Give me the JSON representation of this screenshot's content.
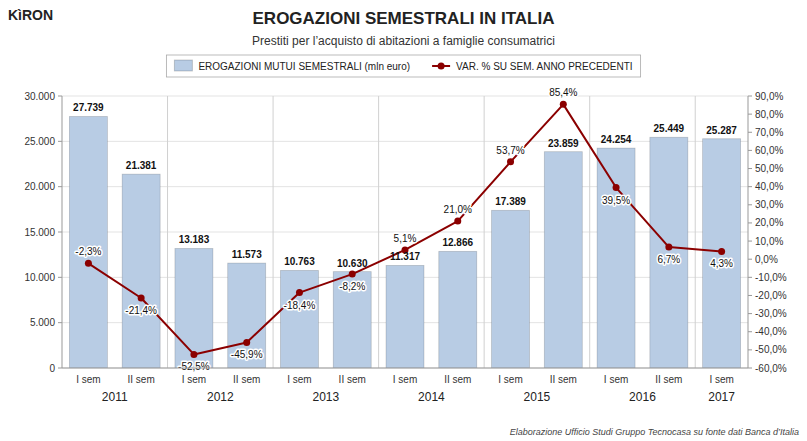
{
  "chart_data": {
    "type": "bar",
    "title": "EROGAZIONI SEMESTRALI IN ITALIA",
    "subtitle": "Prestiti per l’acquisto di abitazioni a famiglie consumatrici",
    "annotations": [
      "KìRON",
      "Elaborazione Ufficio Studi Gruppo Tecnocasa su fonte dati Banca d’Italia"
    ],
    "categories": [
      "I sem",
      "II sem",
      "I sem",
      "II sem",
      "I sem",
      "II sem",
      "I sem",
      "II sem",
      "I sem",
      "II sem",
      "I sem",
      "II sem",
      "I sem"
    ],
    "groups": [
      "2011",
      "2012",
      "2013",
      "2014",
      "2015",
      "2016",
      "2017"
    ],
    "series": [
      {
        "name": "EROGAZIONI MUTUI SEMESTRALI (mln euro)",
        "type": "bar",
        "color": "#b8cce4",
        "values": [
          27739,
          21381,
          13183,
          11573,
          10763,
          10630,
          11317,
          12866,
          17389,
          23859,
          24254,
          25449,
          25287
        ],
        "value_labels": [
          "27.739",
          "21.381",
          "13.183",
          "11.573",
          "10.763",
          "10.630",
          "11.317",
          "12.866",
          "17.389",
          "23.859",
          "24.254",
          "25.449",
          "25.287"
        ]
      },
      {
        "name": "VAR. % SU SEM. ANNO PRECEDENTI",
        "type": "line",
        "axis": "y2",
        "color": "#8b0000",
        "marker": "circle",
        "values": [
          -2.3,
          -21.4,
          -52.5,
          -45.9,
          -18.4,
          -8.2,
          5.1,
          21.0,
          53.7,
          85.4,
          39.5,
          6.7,
          4.3
        ],
        "value_labels": [
          "-2,3%",
          "-21,4%",
          "-52,5%",
          "-45,9%",
          "-18,4%",
          "-8,2%",
          "5,1%",
          "21,0%",
          "53,7%",
          "85,4%",
          "39,5%",
          "6,7%",
          "4,3%"
        ]
      }
    ],
    "ylim": [
      0,
      30000
    ],
    "yticks": [
      0,
      {
        "value": 5000,
        "label": "5.000"
      },
      {
        "value": 10000,
        "label": "10.000"
      },
      {
        "value": 15000,
        "label": "15.000"
      },
      {
        "value": 20000,
        "label": "20.000"
      },
      {
        "value": 25000,
        "label": "25.000"
      },
      {
        "value": 30000,
        "label": "30.000"
      }
    ],
    "y2lim": [
      -60,
      90
    ],
    "y2ticks": [
      {
        "value": -60,
        "label": "-60,0%"
      },
      {
        "value": -50,
        "label": "-50,0%"
      },
      {
        "value": -40,
        "label": "-40,0%"
      },
      {
        "value": -30,
        "label": "-30,0%"
      },
      {
        "value": -20,
        "label": "-20,0%"
      },
      {
        "value": -10,
        "label": "-10,0%"
      },
      {
        "value": 0,
        "label": "0,0%"
      },
      {
        "value": 10,
        "label": "10,0%"
      },
      {
        "value": 20,
        "label": "20,0%"
      },
      {
        "value": 30,
        "label": "30,0%"
      },
      {
        "value": 40,
        "label": "40,0%"
      },
      {
        "value": 50,
        "label": "50,0%"
      },
      {
        "value": 60,
        "label": "60,0%"
      },
      {
        "value": 70,
        "label": "70,0%"
      },
      {
        "value": 80,
        "label": "80,0%"
      },
      {
        "value": 90,
        "label": "90,0%"
      }
    ],
    "grid": true,
    "legend": "top",
    "data_labels": true
  }
}
